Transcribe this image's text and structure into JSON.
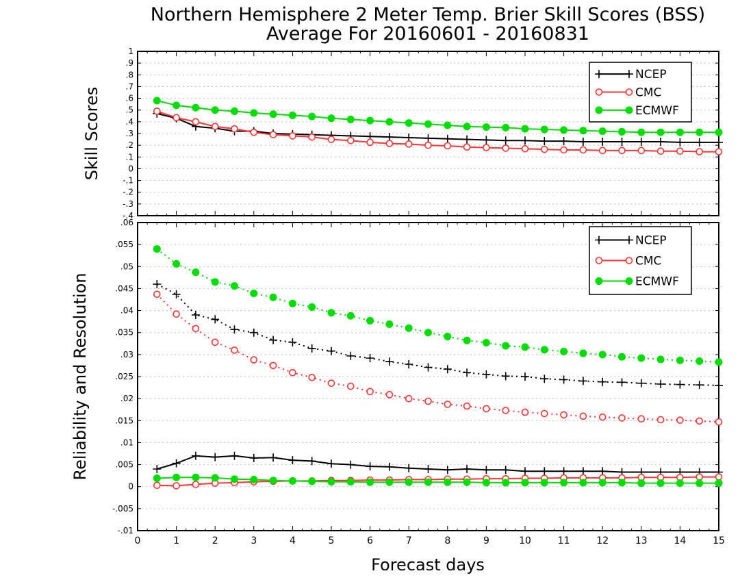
{
  "chart_data": [
    {
      "type": "line",
      "title": "Northern Hemisphere 2 Meter Temp. Brier Skill Scores (BSS)",
      "subtitle": "Average For 20160601 - 20160831",
      "ylabel": "Skill Scores",
      "xlim": [
        0,
        15
      ],
      "ylim": [
        -0.4,
        1
      ],
      "yticks": [
        -0.4,
        -0.3,
        -0.2,
        -0.1,
        0,
        0.1,
        0.2,
        0.3,
        0.4,
        0.5,
        0.6,
        0.7,
        0.8,
        0.9,
        1
      ],
      "grid": true,
      "legend_position": "top-right",
      "x": [
        0.5,
        1,
        1.5,
        2,
        2.5,
        3,
        3.5,
        4,
        4.5,
        5,
        5.5,
        6,
        6.5,
        7,
        7.5,
        8,
        8.5,
        9,
        9.5,
        10,
        10.5,
        11,
        11.5,
        12,
        12.5,
        13,
        13.5,
        14,
        14.5,
        15
      ],
      "series": [
        {
          "name": "NCEP",
          "color": "#000000",
          "marker": "plus",
          "style": "solid",
          "values": [
            0.47,
            0.43,
            0.36,
            0.345,
            0.32,
            0.32,
            0.3,
            0.295,
            0.29,
            0.285,
            0.28,
            0.275,
            0.27,
            0.265,
            0.26,
            0.255,
            0.25,
            0.245,
            0.24,
            0.24,
            0.235,
            0.235,
            0.23,
            0.23,
            0.23,
            0.23,
            0.23,
            0.225,
            0.225,
            0.225
          ]
        },
        {
          "name": "CMC",
          "color": "#ff3333",
          "marker": "open-circle",
          "style": "solid",
          "values": [
            0.49,
            0.435,
            0.4,
            0.36,
            0.34,
            0.31,
            0.29,
            0.28,
            0.27,
            0.25,
            0.24,
            0.225,
            0.215,
            0.21,
            0.2,
            0.195,
            0.185,
            0.18,
            0.175,
            0.17,
            0.165,
            0.16,
            0.16,
            0.155,
            0.155,
            0.155,
            0.15,
            0.15,
            0.145,
            0.145
          ]
        },
        {
          "name": "ECMWF",
          "color": "#00dd00",
          "marker": "filled-circle",
          "style": "solid",
          "values": [
            0.58,
            0.54,
            0.52,
            0.5,
            0.49,
            0.475,
            0.465,
            0.455,
            0.445,
            0.43,
            0.42,
            0.41,
            0.4,
            0.39,
            0.38,
            0.37,
            0.36,
            0.355,
            0.35,
            0.34,
            0.335,
            0.33,
            0.325,
            0.32,
            0.315,
            0.31,
            0.31,
            0.31,
            0.31,
            0.31
          ]
        }
      ]
    },
    {
      "type": "line",
      "xlabel": "Forecast days",
      "ylabel": "Reliability and Resolution",
      "xlim": [
        0,
        15
      ],
      "ylim": [
        -0.01,
        0.06
      ],
      "xticks": [
        0,
        1,
        2,
        3,
        4,
        5,
        6,
        7,
        8,
        9,
        10,
        11,
        12,
        13,
        14,
        15
      ],
      "yticks": [
        -0.01,
        -0.005,
        0,
        0.005,
        0.01,
        0.015,
        0.02,
        0.025,
        0.03,
        0.035,
        0.04,
        0.045,
        0.05,
        0.055,
        0.06
      ],
      "grid": true,
      "legend_position": "top-right",
      "legend": [
        {
          "name": "NCEP",
          "color": "#000000",
          "marker": "plus"
        },
        {
          "name": "CMC",
          "color": "#ff3333",
          "marker": "open-circle"
        },
        {
          "name": "ECMWF",
          "color": "#00dd00",
          "marker": "filled-circle"
        }
      ],
      "x": [
        0.5,
        1,
        1.5,
        2,
        2.5,
        3,
        3.5,
        4,
        4.5,
        5,
        5.5,
        6,
        6.5,
        7,
        7.5,
        8,
        8.5,
        9,
        9.5,
        10,
        10.5,
        11,
        11.5,
        12,
        12.5,
        13,
        13.5,
        14,
        14.5,
        15
      ],
      "series": [
        {
          "group": "NCEP",
          "color": "#000000",
          "marker": "plus",
          "style": "dotted",
          "values": [
            0.046,
            0.0437,
            0.039,
            0.038,
            0.0357,
            0.035,
            0.0333,
            0.0328,
            0.0314,
            0.0308,
            0.0297,
            0.0292,
            0.0284,
            0.0278,
            0.0271,
            0.0267,
            0.0259,
            0.0255,
            0.0251,
            0.025,
            0.0245,
            0.0243,
            0.024,
            0.0238,
            0.0237,
            0.0235,
            0.0233,
            0.0232,
            0.0231,
            0.023
          ]
        },
        {
          "group": "CMC",
          "color": "#ff3333",
          "marker": "open-circle",
          "style": "dotted",
          "values": [
            0.0437,
            0.0392,
            0.0359,
            0.0328,
            0.031,
            0.0288,
            0.0275,
            0.0259,
            0.0248,
            0.0235,
            0.0228,
            0.0216,
            0.0209,
            0.02,
            0.0194,
            0.0187,
            0.0183,
            0.0177,
            0.0173,
            0.0169,
            0.0166,
            0.0163,
            0.016,
            0.0158,
            0.0156,
            0.0154,
            0.0152,
            0.0151,
            0.0149,
            0.0147
          ]
        },
        {
          "group": "ECMWF",
          "color": "#00dd00",
          "marker": "filled-circle",
          "style": "dotted",
          "values": [
            0.054,
            0.0506,
            0.0487,
            0.0465,
            0.0456,
            0.0439,
            0.043,
            0.0416,
            0.0408,
            0.0395,
            0.0388,
            0.0377,
            0.0369,
            0.036,
            0.035,
            0.0341,
            0.0332,
            0.0327,
            0.032,
            0.0317,
            0.0311,
            0.0307,
            0.0303,
            0.03,
            0.0295,
            0.0292,
            0.0289,
            0.0287,
            0.0285,
            0.0283
          ]
        },
        {
          "group": "NCEP",
          "color": "#000000",
          "marker": "plus",
          "style": "solid",
          "values": [
            0.004,
            0.0053,
            0.007,
            0.0067,
            0.007,
            0.0065,
            0.0066,
            0.006,
            0.0058,
            0.0052,
            0.005,
            0.0046,
            0.0045,
            0.0042,
            0.004,
            0.0038,
            0.004,
            0.0038,
            0.0038,
            0.0035,
            0.0035,
            0.0035,
            0.0035,
            0.0035,
            0.0033,
            0.0033,
            0.0033,
            0.0033,
            0.0033,
            0.0033
          ]
        },
        {
          "group": "CMC",
          "color": "#ff3333",
          "marker": "open-circle",
          "style": "solid",
          "values": [
            0.0003,
            0.0002,
            0.0005,
            0.0008,
            0.0009,
            0.0011,
            0.0012,
            0.0013,
            0.0013,
            0.0014,
            0.0014,
            0.0015,
            0.0015,
            0.0016,
            0.0016,
            0.0017,
            0.0017,
            0.0018,
            0.0018,
            0.0019,
            0.0019,
            0.002,
            0.002,
            0.002,
            0.002,
            0.0021,
            0.0021,
            0.0021,
            0.0022,
            0.0022
          ]
        },
        {
          "group": "ECMWF",
          "color": "#00dd00",
          "marker": "filled-circle",
          "style": "solid",
          "values": [
            0.0019,
            0.0021,
            0.0021,
            0.002,
            0.0017,
            0.0016,
            0.0014,
            0.0013,
            0.0012,
            0.0011,
            0.0011,
            0.001,
            0.001,
            0.001,
            0.001,
            0.001,
            0.001,
            0.0009,
            0.0009,
            0.0009,
            0.0009,
            0.0009,
            0.0009,
            0.0009,
            0.0009,
            0.0008,
            0.0008,
            0.0008,
            0.0008,
            0.0008
          ]
        }
      ]
    }
  ]
}
